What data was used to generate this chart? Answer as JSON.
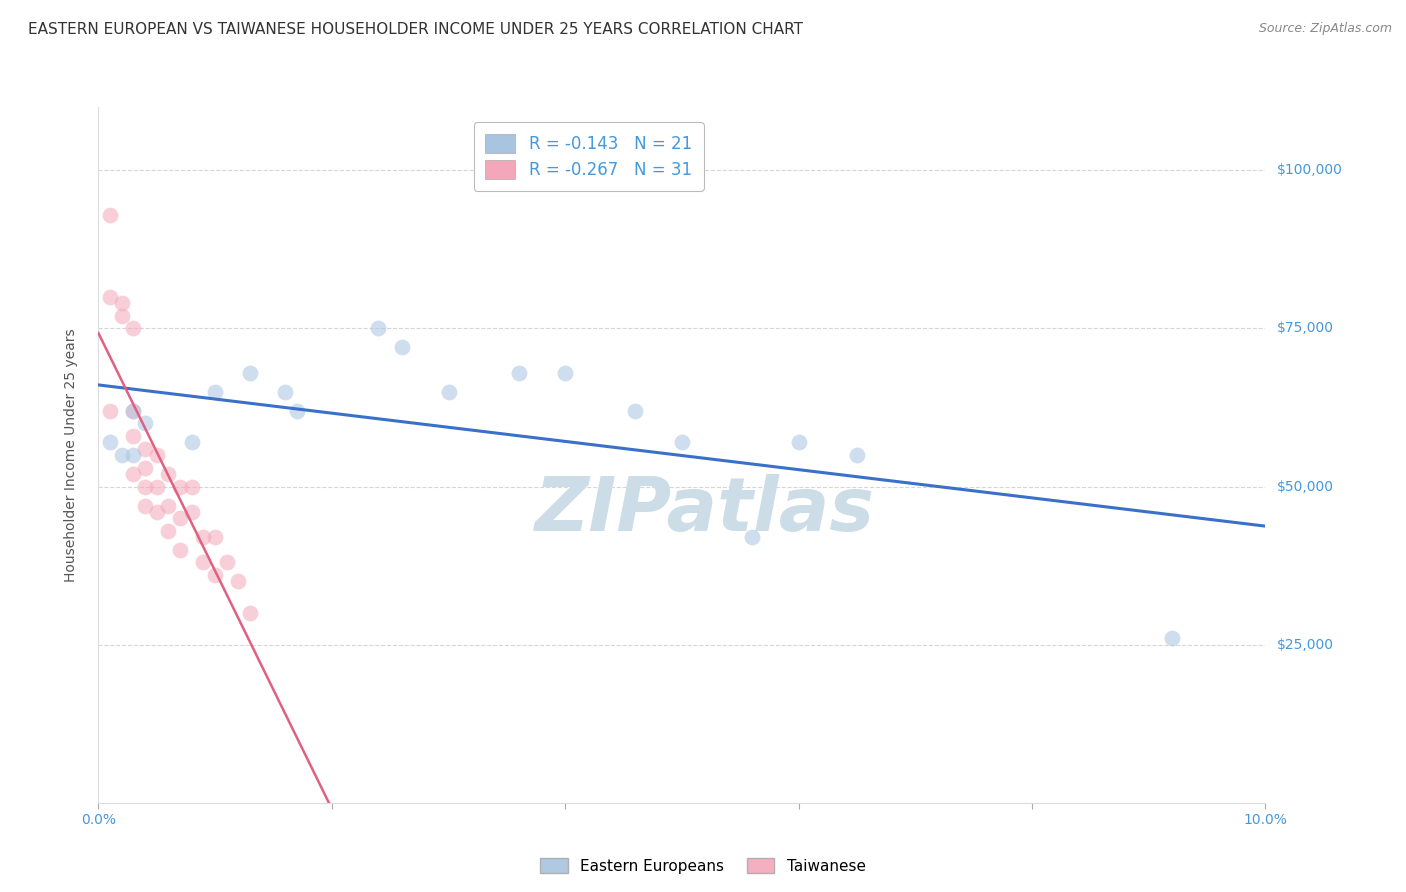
{
  "title": "EASTERN EUROPEAN VS TAIWANESE HOUSEHOLDER INCOME UNDER 25 YEARS CORRELATION CHART",
  "source": "Source: ZipAtlas.com",
  "ylabel": "Householder Income Under 25 years",
  "x_min": 0.0,
  "x_max": 0.1,
  "y_min": 0,
  "y_max": 110000,
  "x_ticks": [
    0.0,
    0.02,
    0.04,
    0.06,
    0.08,
    0.1
  ],
  "y_ticks": [
    0,
    25000,
    50000,
    75000,
    100000
  ],
  "y_tick_labels": [
    "",
    "$25,000",
    "$50,000",
    "$75,000",
    "$100,000"
  ],
  "legend_entries": [
    {
      "label": "R = -0.143   N = 21",
      "color": "#a8c4e0"
    },
    {
      "label": "R = -0.267   N = 31",
      "color": "#f4a7b9"
    }
  ],
  "legend_labels": [
    "Eastern Europeans",
    "Taiwanese"
  ],
  "eastern_european_x": [
    0.001,
    0.002,
    0.003,
    0.003,
    0.004,
    0.008,
    0.01,
    0.013,
    0.016,
    0.017,
    0.024,
    0.026,
    0.03,
    0.036,
    0.04,
    0.046,
    0.05,
    0.056,
    0.06,
    0.065,
    0.092
  ],
  "eastern_european_y": [
    57000,
    55000,
    55000,
    62000,
    60000,
    57000,
    65000,
    68000,
    65000,
    62000,
    75000,
    72000,
    65000,
    68000,
    68000,
    62000,
    57000,
    42000,
    57000,
    55000,
    26000
  ],
  "taiwanese_x": [
    0.001,
    0.001,
    0.002,
    0.002,
    0.003,
    0.003,
    0.003,
    0.003,
    0.004,
    0.004,
    0.004,
    0.004,
    0.005,
    0.005,
    0.005,
    0.006,
    0.006,
    0.006,
    0.007,
    0.007,
    0.007,
    0.008,
    0.008,
    0.009,
    0.009,
    0.01,
    0.01,
    0.011,
    0.012,
    0.013,
    0.001
  ],
  "taiwanese_y": [
    93000,
    80000,
    79000,
    77000,
    75000,
    62000,
    58000,
    52000,
    56000,
    53000,
    50000,
    47000,
    55000,
    50000,
    46000,
    52000,
    47000,
    43000,
    50000,
    45000,
    40000,
    50000,
    46000,
    42000,
    38000,
    42000,
    36000,
    38000,
    35000,
    30000,
    62000
  ],
  "blue_line_color": "#3a70c8",
  "pink_line_color": "#e06080",
  "dot_alpha": 0.55,
  "dot_size": 130,
  "watermark": "ZIPatlas",
  "watermark_color": "#ccdde8",
  "background_color": "#ffffff",
  "grid_color": "#cccccc",
  "title_color": "#333333",
  "source_color": "#888888",
  "tick_label_color": "#4499dd"
}
